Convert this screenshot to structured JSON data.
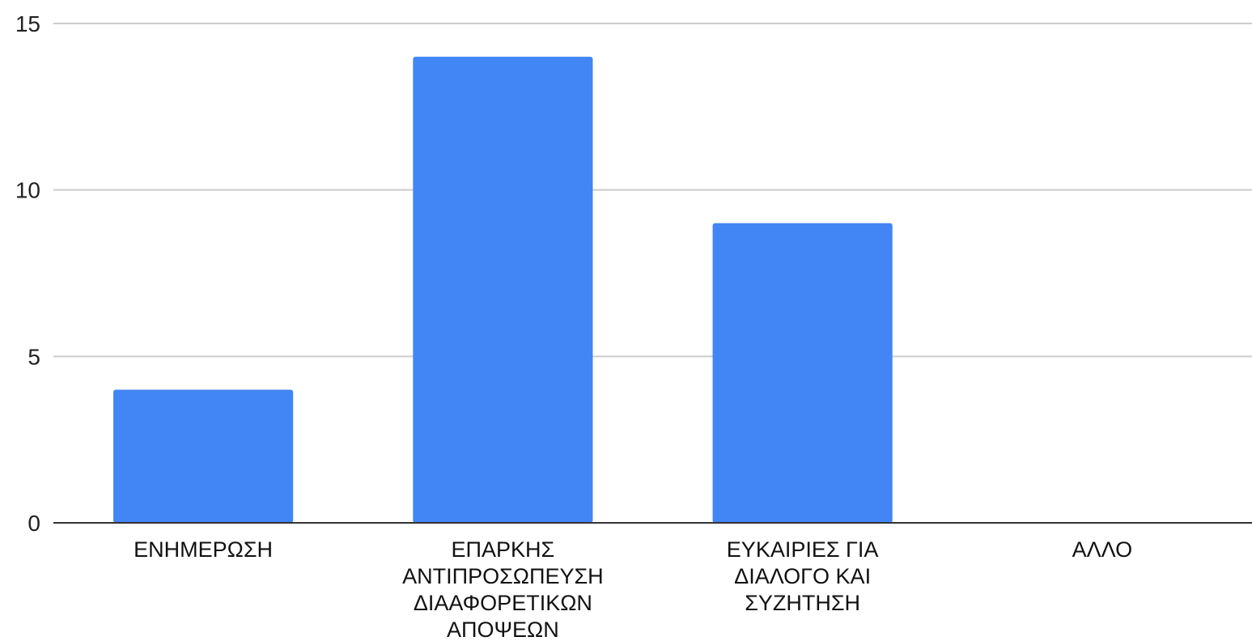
{
  "chart_data": {
    "type": "bar",
    "categories": [
      [
        "ΕΝΗΜΕΡΩΣΗ"
      ],
      [
        "ΕΠΑΡΚΗΣ",
        "ΑΝΤΙΠΡΟΣΩΠΕΥΣΗ",
        "ΔΙΑΑΦΟΡΕΤΙΚΩΝ",
        "ΑΠΟΨΕΩΝ"
      ],
      [
        "ΕΥΚΑΙΡΙΕΣ ΓΙΑ",
        "ΔΙΑΛΟΓΟ ΚΑΙ",
        "ΣΥΖΗΤΗΣΗ"
      ],
      [
        "ΑΛΛΟ"
      ]
    ],
    "values": [
      4,
      14,
      9,
      0
    ],
    "ylim": [
      0,
      15
    ],
    "yticks": [
      0,
      5,
      10,
      15
    ],
    "title": "",
    "xlabel": "",
    "ylabel": "",
    "grid": true,
    "bar_color": "#4285f4"
  }
}
